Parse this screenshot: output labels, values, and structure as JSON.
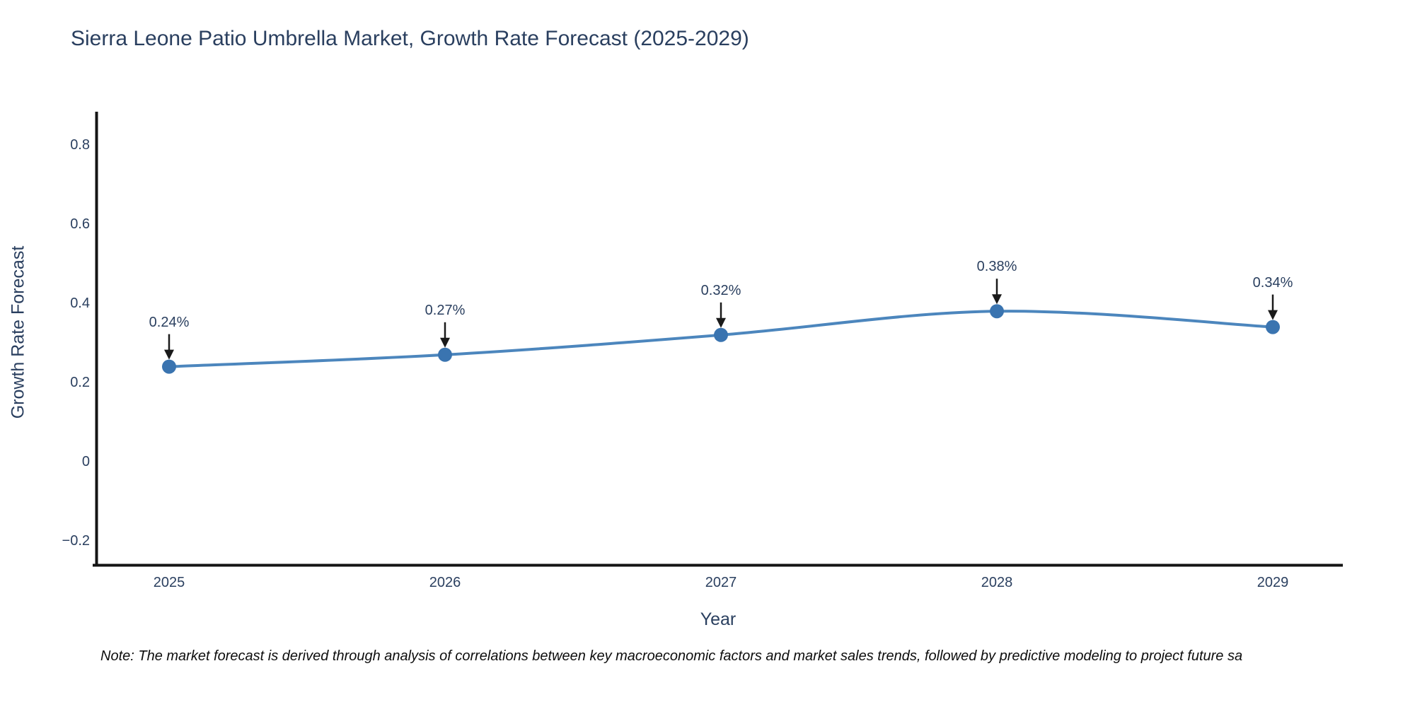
{
  "title": "Sierra Leone Patio Umbrella Market, Growth Rate Forecast (2025-2029)",
  "footnote": "Note: The market forecast is derived through analysis of correlations between key macroeconomic factors and market sales trends, followed by predictive modeling to project future sa",
  "chart_data": {
    "type": "line",
    "title": "Sierra Leone Patio Umbrella Market, Growth Rate Forecast (2025-2029)",
    "xlabel": "Year",
    "ylabel": "Growth Rate Forecast",
    "x": [
      2025,
      2026,
      2027,
      2028,
      2029
    ],
    "series": [
      {
        "name": "Growth Rate Forecast",
        "values": [
          0.24,
          0.27,
          0.32,
          0.38,
          0.34
        ]
      }
    ],
    "point_labels": [
      "0.24%",
      "0.27%",
      "0.32%",
      "0.38%",
      "0.34%"
    ],
    "annotation_style": "text with downward black arrow onto each marker",
    "xticks": {
      "values": [
        2025,
        2026,
        2027,
        2028,
        2029
      ],
      "labels": [
        "2025",
        "2026",
        "2027",
        "2028",
        "2029"
      ]
    },
    "yticks": {
      "values": [
        -0.2,
        0,
        0.2,
        0.4,
        0.6,
        0.8
      ],
      "labels": [
        "−0.2",
        "0",
        "0.2",
        "0.4",
        "0.6",
        "0.8"
      ]
    },
    "ylim": [
      -0.263,
      0.882
    ],
    "xlim": [
      2024.72,
      2029.25
    ],
    "grid": false,
    "legend": "none",
    "line_shape": "spline",
    "colors": {
      "line": "#4c86bd",
      "marker": "#3a74b0",
      "axis": "#141414",
      "arrow": "#1a1a1a",
      "text": "#2a3f5f",
      "background": "#ffffff"
    }
  }
}
